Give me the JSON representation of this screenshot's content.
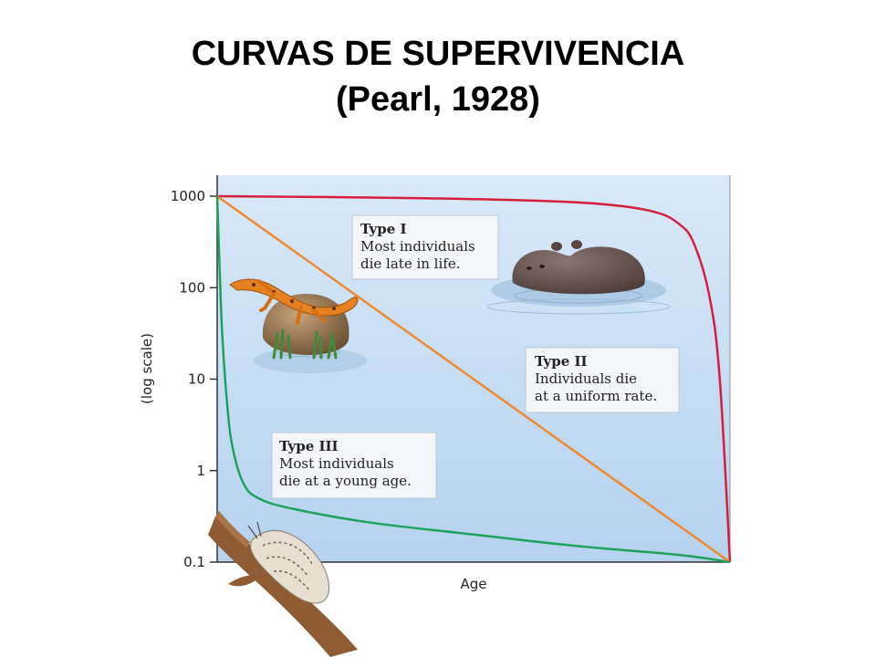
{
  "slide": {
    "title_line1": "CURVAS DE SUPERVIVENCIA",
    "title_line2": "(Pearl, 1928)"
  },
  "chart_data": {
    "type": "line",
    "xlabel": "Age",
    "ylabel": "(log scale)",
    "y_scale": "log",
    "y_ticks": [
      "1000",
      "100",
      "10",
      "1",
      "0.1"
    ],
    "y_values": [
      1000,
      100,
      10,
      1,
      0.1
    ],
    "ylim": [
      0.1,
      1000
    ],
    "xlim": [
      0,
      1
    ],
    "grid": false,
    "series": [
      {
        "name": "Type I",
        "color": "#d81e3c",
        "x": [
          0,
          0.2,
          0.4,
          0.6,
          0.75,
          0.85,
          0.9,
          0.93,
          0.96,
          0.98,
          1.0
        ],
        "y": [
          1000,
          980,
          950,
          900,
          820,
          680,
          500,
          300,
          80,
          10,
          0.1
        ]
      },
      {
        "name": "Type II",
        "color": "#f0882e",
        "x": [
          0,
          1
        ],
        "y": [
          1000,
          0.1
        ]
      },
      {
        "name": "Type III",
        "color": "#1fa35c",
        "x": [
          0,
          0.005,
          0.01,
          0.02,
          0.03,
          0.05,
          0.08,
          0.15,
          0.3,
          0.5,
          0.7,
          0.9,
          1.0
        ],
        "y": [
          1000,
          150,
          30,
          5,
          1.8,
          0.75,
          0.5,
          0.38,
          0.27,
          0.2,
          0.15,
          0.12,
          0.1
        ]
      }
    ],
    "annotations": [
      {
        "id": "type1",
        "title": "Type I",
        "lines": [
          "Most individuals",
          "die late in life."
        ]
      },
      {
        "id": "type2",
        "title": "Type II",
        "lines": [
          "Individuals die",
          "at a uniform rate."
        ]
      },
      {
        "id": "type3",
        "title": "Type III",
        "lines": [
          "Most individuals",
          "die at a young age."
        ]
      }
    ]
  },
  "illustrations": {
    "salamander": "salamander-on-rock",
    "hippo": "hippo-in-water",
    "moth": "moth-on-branch"
  },
  "colors": {
    "plot_bg_top": "#d9e9f8",
    "plot_bg_bottom": "#b5d3ef",
    "box_bg": "#f3f5f8",
    "axis": "#333333"
  }
}
